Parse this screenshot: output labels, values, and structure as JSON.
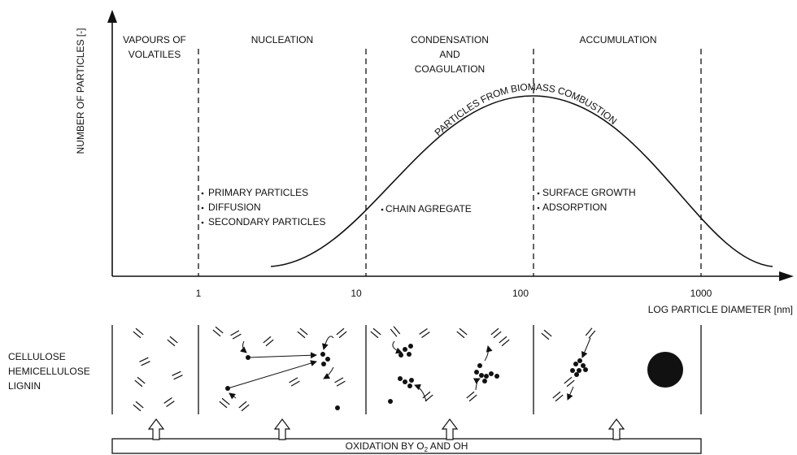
{
  "axes": {
    "y_label": "NUMBER OF PARTICLES [-]",
    "x_label": "LOG PARTICLE DIAMETER [nm]",
    "x_ticks": [
      "1",
      "10",
      "100",
      "1000"
    ]
  },
  "regions": [
    {
      "title": [
        "VAPOURS OF",
        "VOLATILES"
      ]
    },
    {
      "title": [
        "NUCLEATION"
      ],
      "notes": [
        "PRIMARY PARTICLES",
        "DIFFUSION",
        "SECONDARY PARTICLES"
      ]
    },
    {
      "title": [
        "CONDENSATION",
        "AND",
        "COAGULATION"
      ],
      "notes": [
        "CHAIN AGREGATE"
      ]
    },
    {
      "title": [
        "ACCUMULATION"
      ],
      "notes": [
        "SURFACE GROWTH",
        "ADSORPTION"
      ]
    }
  ],
  "curve_label": "PARTICLES FROM BIOMASS COMBUSTION",
  "fuel_labels": [
    "CELLULOSE",
    "HEMICELLULOSE",
    "LIGNIN"
  ],
  "process": {
    "text": "OXIDATION BY O",
    "subscript": "2",
    "text_end": " AND OH"
  }
}
